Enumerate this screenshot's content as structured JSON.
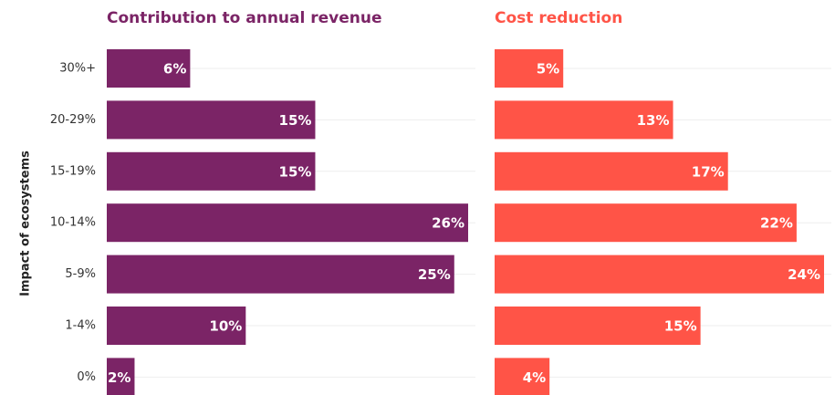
{
  "chart_data": [
    {
      "type": "bar",
      "title": "Contribution to annual revenue",
      "ylabel": "Impact of ecosystems",
      "categories": [
        "30%+",
        "20-29%",
        "15-19%",
        "10-14%",
        "5-9%",
        "1-4%",
        "0%"
      ],
      "values": [
        6,
        15,
        15,
        26,
        25,
        10,
        2
      ],
      "value_labels": [
        "6%",
        "15%",
        "15%",
        "26%",
        "25%",
        "10%",
        "2%"
      ],
      "color": "#7b2466",
      "xlim": [
        0,
        26
      ]
    },
    {
      "type": "bar",
      "title": "Cost reduction",
      "values": [
        5,
        13,
        17,
        22,
        24,
        15,
        4
      ],
      "value_labels": [
        "5%",
        "13%",
        "17%",
        "22%",
        "24%",
        "15%",
        "4%"
      ],
      "color": "#ff5447",
      "xlim": [
        0,
        24
      ]
    }
  ]
}
